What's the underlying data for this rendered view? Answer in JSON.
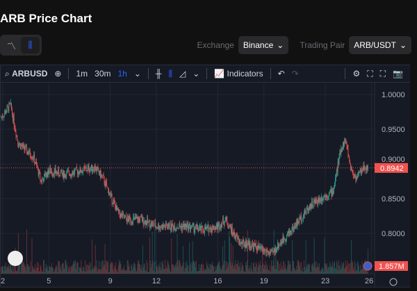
{
  "title": "ARB Price Chart",
  "view_toggle": {
    "options": [
      "line-chart-icon",
      "candles-icon"
    ],
    "selected": "candles-icon"
  },
  "exchange": {
    "label": "Exchange",
    "value": "Binance"
  },
  "pair": {
    "label": "Trading Pair",
    "value": "ARB/USDT"
  },
  "toolbar": {
    "symbol": "ARBUSD",
    "intervals": [
      "1m",
      "30m",
      "1h"
    ],
    "active_interval": "1h",
    "indicators": "Indicators"
  },
  "colors": {
    "up": "#26a69a",
    "down": "#ef5350",
    "accent": "#2962ff"
  },
  "chart_data": {
    "type": "candlestick",
    "x_ticks": [
      "2",
      "5",
      "9",
      "12",
      "16",
      "19",
      "23",
      "26"
    ],
    "y_ticks": [
      "1.0000",
      "0.9500",
      "0.9000",
      "0.8500",
      "0.8000"
    ],
    "ylim": [
      0.765,
      1.01
    ],
    "last_price": "0.8942",
    "volume_label": "1.857M",
    "price_path": [
      [
        2,
        0.97
      ],
      [
        2.5,
        0.985
      ],
      [
        3,
        0.93
      ],
      [
        4,
        0.91
      ],
      [
        4.5,
        0.875
      ],
      [
        5,
        0.89
      ],
      [
        6,
        0.885
      ],
      [
        7,
        0.89
      ],
      [
        8,
        0.895
      ],
      [
        8.5,
        0.88
      ],
      [
        9,
        0.855
      ],
      [
        9.5,
        0.83
      ],
      [
        10,
        0.82
      ],
      [
        11,
        0.82
      ],
      [
        12,
        0.81
      ],
      [
        13,
        0.81
      ],
      [
        14,
        0.81
      ],
      [
        15,
        0.805
      ],
      [
        16,
        0.81
      ],
      [
        16.5,
        0.82
      ],
      [
        17,
        0.8
      ],
      [
        17.5,
        0.785
      ],
      [
        18,
        0.785
      ],
      [
        19,
        0.775
      ],
      [
        19.5,
        0.77
      ],
      [
        20,
        0.785
      ],
      [
        21,
        0.81
      ],
      [
        22,
        0.84
      ],
      [
        23,
        0.855
      ],
      [
        23.5,
        0.86
      ],
      [
        24,
        0.92
      ],
      [
        24.3,
        0.935
      ],
      [
        24.7,
        0.89
      ],
      [
        25,
        0.88
      ],
      [
        25.5,
        0.895
      ],
      [
        25.8,
        0.894
      ]
    ]
  }
}
